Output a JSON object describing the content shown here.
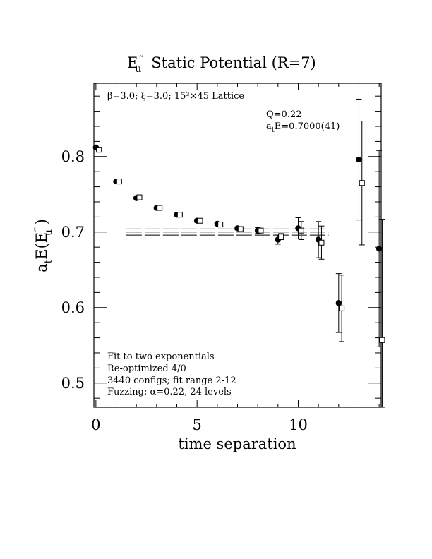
{
  "chart_data": {
    "type": "scatter",
    "title_main": "E",
    "title_sub": "u",
    "title_rest": "Static Potential (R=7)",
    "xlabel": "time separation",
    "ylabel": "a",
    "ylabel_sub": "t",
    "ylabel_rest": "E(E",
    "ylabel_sub2": "u",
    "ylabel_close": " )",
    "xlim": [
      -0.1,
      14.1
    ],
    "ylim": [
      0.468,
      0.897
    ],
    "xticks": [
      0,
      5,
      10
    ],
    "xtick_labels": [
      "0",
      "5",
      "10"
    ],
    "yticks": [
      0.5,
      0.6,
      0.7,
      0.8
    ],
    "ytick_labels": [
      "0.5",
      "0.6",
      "0.7",
      "0.8"
    ],
    "top_note": "β=3.0; ξ=3.0; 15³×45 Lattice",
    "fit_info": [
      "Q=0.22",
      "a",
      "t",
      "E=0.7000(41)"
    ],
    "notes": [
      "Fit to two exponentials",
      "Re-optimized 4/0",
      "3440 configs; fit range 2-12",
      "Fuzzing: α=0.22, 24 levels"
    ],
    "fit": {
      "value": 0.7,
      "error": 0.0041,
      "t_start": 1.5,
      "t_end": 11.5
    },
    "series": [
      {
        "marker": "filled-circle",
        "x": [
          0,
          1,
          2,
          3,
          4,
          5,
          6,
          7,
          8,
          9,
          10,
          11,
          12,
          13,
          14
        ],
        "y": [
          0.812,
          0.767,
          0.745,
          0.732,
          0.723,
          0.715,
          0.711,
          0.705,
          0.702,
          0.69,
          0.705,
          0.69,
          0.606,
          0.796,
          0.678
        ],
        "err": [
          0.001,
          0.001,
          0.001,
          0.001,
          0.001,
          0.002,
          0.002,
          0.002,
          0.004,
          0.006,
          0.014,
          0.024,
          0.039,
          0.08,
          0.13
        ]
      },
      {
        "marker": "open-square",
        "x": [
          0.15,
          1.15,
          2.15,
          3.15,
          4.15,
          5.15,
          6.15,
          7.15,
          8.15,
          9.15,
          10.15,
          11.15,
          12.15,
          13.15,
          14.15
        ],
        "y": [
          0.809,
          0.767,
          0.746,
          0.732,
          0.723,
          0.715,
          0.71,
          0.704,
          0.702,
          0.694,
          0.702,
          0.686,
          0.599,
          0.765,
          0.557
        ],
        "err": [
          0.001,
          0.001,
          0.001,
          0.001,
          0.001,
          0.002,
          0.002,
          0.002,
          0.003,
          0.004,
          0.012,
          0.022,
          0.044,
          0.082,
          0.16
        ]
      }
    ]
  }
}
